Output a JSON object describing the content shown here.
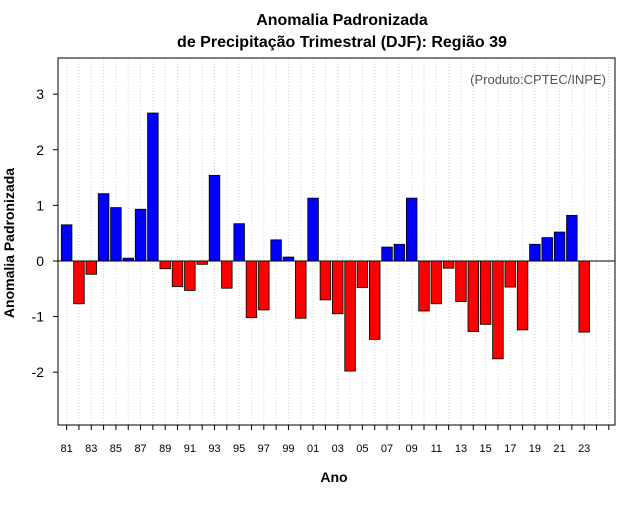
{
  "chart_data": {
    "type": "bar",
    "title": [
      "Anomalia Padronizada",
      "de Precipitação Trimestral (DJF): Região 39"
    ],
    "xlabel": "Ano",
    "ylabel": "Anomalia Padronizada",
    "annotation": "(Produto:CPTEC/INPE)",
    "ylim": [
      -2.95,
      3.65
    ],
    "xlim": [
      0.3,
      45.5
    ],
    "yticks": [
      -2,
      -1,
      0,
      1,
      2,
      3
    ],
    "xtick_labels": [
      "81",
      "83",
      "85",
      "87",
      "89",
      "91",
      "93",
      "95",
      "97",
      "99",
      "01",
      "03",
      "05",
      "07",
      "09",
      "11",
      "13",
      "15",
      "17",
      "19",
      "21",
      "23"
    ],
    "grid": true,
    "positive_color": "#0000ff",
    "negative_color": "#ff0000",
    "years": [
      1981,
      1982,
      1983,
      1984,
      1985,
      1986,
      1987,
      1988,
      1989,
      1990,
      1991,
      1992,
      1993,
      1994,
      1995,
      1996,
      1997,
      1998,
      1999,
      2000,
      2001,
      2002,
      2003,
      2004,
      2005,
      2006,
      2007,
      2008,
      2009,
      2010,
      2011,
      2012,
      2013,
      2014,
      2015,
      2016,
      2017,
      2018,
      2019,
      2020,
      2021,
      2022,
      2023
    ],
    "values": [
      0.65,
      -0.77,
      -0.24,
      1.21,
      0.96,
      0.05,
      0.93,
      2.66,
      -0.14,
      -0.46,
      -0.53,
      -0.06,
      1.54,
      -0.49,
      0.67,
      -1.02,
      -0.88,
      0.38,
      0.07,
      -1.03,
      1.13,
      -0.7,
      -0.95,
      -1.98,
      -0.48,
      -1.41,
      0.25,
      0.3,
      1.13,
      -0.9,
      -0.77,
      -0.13,
      -0.73,
      -1.27,
      -1.14,
      -1.76,
      -0.47,
      -1.24,
      0.3,
      0.42,
      0.52,
      0.82,
      -1.28
    ]
  }
}
